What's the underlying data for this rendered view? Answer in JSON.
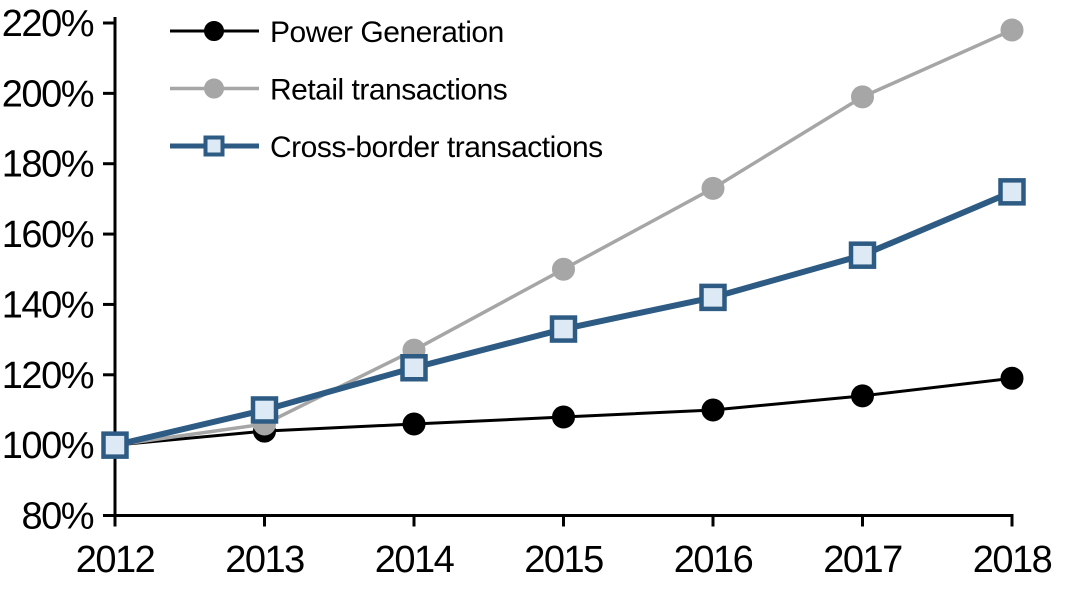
{
  "page": {
    "background": "#ffffff"
  },
  "chart_data": {
    "type": "line",
    "title": "",
    "xlabel": "",
    "ylabel": "",
    "categories": [
      "2012",
      "2013",
      "2014",
      "2015",
      "2016",
      "2017",
      "2018"
    ],
    "series": [
      {
        "name": "Power Generation",
        "values": [
          100,
          104,
          106,
          108,
          110,
          114,
          119
        ],
        "color": "#000000",
        "marker": "circle",
        "marker_fill": "#000000",
        "marker_stroke": "#000000",
        "line_width": 3
      },
      {
        "name": "Retail transactions",
        "values": [
          100,
          106,
          127,
          150,
          173,
          199,
          218
        ],
        "color": "#a6a6a6",
        "marker": "circle",
        "marker_fill": "#a6a6a6",
        "marker_stroke": "#a6a6a6",
        "line_width": 3.5
      },
      {
        "name": "Cross-border transactions",
        "values": [
          100,
          110,
          122,
          133,
          142,
          154,
          172
        ],
        "color": "#2d5b84",
        "marker": "square",
        "marker_fill": "#dde9f4",
        "marker_stroke": "#2d5b84",
        "line_width": 6
      }
    ],
    "ylim": [
      80,
      220
    ],
    "ytick_step": 20,
    "y_tick_labels": [
      "220%",
      "200%",
      "180%",
      "160%",
      "140%",
      "120%",
      "100%",
      "80%"
    ],
    "x_tick_labels": [
      "2012",
      "2013",
      "2014",
      "2015",
      "2016",
      "2017",
      "2018"
    ],
    "grid": false,
    "legend": {
      "position": "top-left-inside",
      "entries": [
        "Power Generation",
        "Retail transactions",
        "Cross-border transactions"
      ]
    },
    "axis_color": "#000000",
    "text_color": "#000000"
  }
}
